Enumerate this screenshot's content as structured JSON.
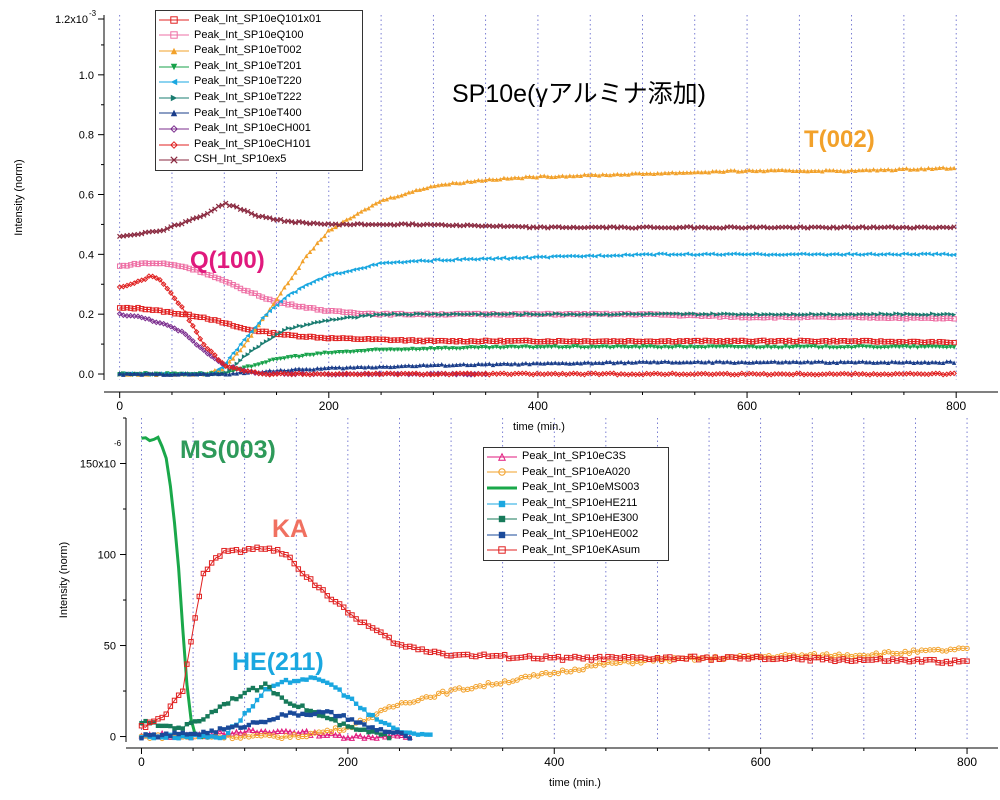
{
  "chart_data": [
    {
      "type": "line",
      "title": "SP10e(γアルミナ添加)",
      "xlabel": "time (min.)",
      "ylabel": "Intensity (norm)",
      "xlim": [
        -15,
        840
      ],
      "ylim": [
        -0.02,
        1.2
      ],
      "xticks": [
        0,
        200,
        400,
        600,
        800
      ],
      "yticks": [
        0.0,
        0.2,
        0.4,
        0.6,
        0.8,
        1.0
      ],
      "ytick_labels": [
        "0.0",
        "0.2",
        "0.4",
        "0.6",
        "0.8",
        "1.0"
      ],
      "y_top_label": "1.2x10",
      "y_top_exponent": "-3",
      "grid": "vertical dotted",
      "legend_position": "top-left",
      "annotations": [
        {
          "text": "T(002)",
          "color": "#f2a12a"
        },
        {
          "text": "Q(100)",
          "color": "#e0197d"
        }
      ],
      "series": [
        {
          "name": "Peak_Int_SP10eQ101x01",
          "color": "#e02020",
          "marker": "square-open",
          "x": [
            0,
            20,
            40,
            60,
            80,
            100,
            120,
            140,
            160,
            200,
            300,
            400,
            500,
            600,
            700,
            800
          ],
          "y": [
            0.22,
            0.22,
            0.21,
            0.2,
            0.19,
            0.17,
            0.15,
            0.14,
            0.13,
            0.12,
            0.11,
            0.11,
            0.11,
            0.11,
            0.11,
            0.105
          ]
        },
        {
          "name": "Peak_Int_SP10eQ100",
          "color": "#ee6fa4",
          "marker": "square-open",
          "x": [
            0,
            20,
            40,
            60,
            80,
            100,
            120,
            150,
            200,
            250,
            300,
            400,
            500,
            600,
            700,
            800
          ],
          "y": [
            0.36,
            0.37,
            0.37,
            0.36,
            0.34,
            0.31,
            0.28,
            0.24,
            0.21,
            0.2,
            0.2,
            0.2,
            0.2,
            0.19,
            0.19,
            0.185
          ]
        },
        {
          "name": "Peak_Int_SP10eT002",
          "color": "#f2a12a",
          "marker": "triangle-up",
          "x": [
            0,
            80,
            100,
            120,
            140,
            160,
            180,
            200,
            250,
            300,
            350,
            400,
            500,
            600,
            700,
            800
          ],
          "y": [
            0.0,
            0.0,
            0.02,
            0.1,
            0.2,
            0.3,
            0.4,
            0.48,
            0.58,
            0.63,
            0.65,
            0.66,
            0.67,
            0.68,
            0.68,
            0.69
          ]
        },
        {
          "name": "Peak_Int_SP10eT201",
          "color": "#17a24a",
          "marker": "triangle-down",
          "x": [
            0,
            100,
            120,
            140,
            160,
            200,
            250,
            300,
            400,
            500,
            600,
            700,
            800
          ],
          "y": [
            0.0,
            0.0,
            0.02,
            0.04,
            0.055,
            0.07,
            0.08,
            0.085,
            0.09,
            0.09,
            0.09,
            0.09,
            0.09
          ]
        },
        {
          "name": "Peak_Int_SP10eT220",
          "color": "#1aa7e0",
          "marker": "triangle-left",
          "x": [
            0,
            90,
            100,
            120,
            140,
            160,
            180,
            200,
            250,
            300,
            400,
            500,
            600,
            700,
            800
          ],
          "y": [
            0.0,
            0.0,
            0.03,
            0.12,
            0.2,
            0.26,
            0.3,
            0.33,
            0.37,
            0.38,
            0.39,
            0.4,
            0.4,
            0.4,
            0.4
          ]
        },
        {
          "name": "Peak_Int_SP10eT222",
          "color": "#1a7c70",
          "marker": "triangle-right",
          "x": [
            0,
            100,
            120,
            140,
            160,
            200,
            250,
            300,
            400,
            500,
            600,
            700,
            800
          ],
          "y": [
            0.0,
            0.0,
            0.06,
            0.11,
            0.15,
            0.18,
            0.2,
            0.2,
            0.2,
            0.2,
            0.2,
            0.2,
            0.2
          ]
        },
        {
          "name": "Peak_Int_SP10eT400",
          "color": "#1a3d8a",
          "marker": "triangle-up",
          "x": [
            0,
            100,
            140,
            200,
            300,
            400,
            500,
            600,
            700,
            800
          ],
          "y": [
            0.0,
            0.0,
            0.01,
            0.02,
            0.03,
            0.035,
            0.04,
            0.04,
            0.04,
            0.04
          ]
        },
        {
          "name": "Peak_Int_SP10eCH001",
          "color": "#7b2d8e",
          "marker": "diamond-open",
          "x": [
            0,
            20,
            40,
            60,
            80,
            100,
            120,
            140,
            200,
            300,
            350
          ],
          "y": [
            0.2,
            0.19,
            0.17,
            0.14,
            0.08,
            0.03,
            0.01,
            0.0,
            0.0,
            0.0,
            0.0
          ]
        },
        {
          "name": "Peak_Int_SP10eCH101",
          "color": "#e02020",
          "marker": "diamond-open",
          "x": [
            0,
            20,
            30,
            40,
            60,
            80,
            100,
            120,
            140,
            450,
            500,
            600,
            700,
            800
          ],
          "y": [
            0.29,
            0.31,
            0.33,
            0.31,
            0.22,
            0.1,
            0.03,
            0.01,
            0.0,
            0.0,
            0.0,
            0.0,
            0.0,
            0.0
          ]
        },
        {
          "name": "CSH_Int_SP10ex5",
          "color": "#8a2a40",
          "marker": "x",
          "x": [
            0,
            40,
            80,
            100,
            110,
            130,
            160,
            200,
            250,
            300,
            400,
            500,
            600,
            700,
            800
          ],
          "y": [
            0.46,
            0.48,
            0.53,
            0.57,
            0.56,
            0.53,
            0.51,
            0.5,
            0.5,
            0.5,
            0.49,
            0.49,
            0.49,
            0.49,
            0.49
          ]
        }
      ]
    },
    {
      "type": "line",
      "title": "",
      "xlabel": "time (min.)",
      "ylabel": "Intensity (norm)",
      "xlim": [
        -15,
        830
      ],
      "ylim": [
        -3,
        175
      ],
      "xticks": [
        0,
        200,
        400,
        600,
        800
      ],
      "yticks": [
        0,
        50,
        100,
        150
      ],
      "ytick_labels": [
        "0",
        "50",
        "100",
        "150x10"
      ],
      "y_top_exponent": "-6",
      "grid": "vertical dotted",
      "legend_position": "right-top",
      "annotations": [
        {
          "text": "MS(003)",
          "color": "#2e9a5a"
        },
        {
          "text": "KA",
          "color": "#f07060"
        },
        {
          "text": "HE(211)",
          "color": "#1aa7e0"
        }
      ],
      "series": [
        {
          "name": "Peak_Int_SP10eC3S",
          "color": "#e0197d",
          "marker": "triangle-open",
          "x": [
            0,
            20,
            40,
            60,
            80,
            100,
            120,
            140,
            160,
            200,
            260
          ],
          "y": [
            0,
            1,
            0,
            1,
            2,
            3,
            2,
            3,
            2,
            0,
            0
          ]
        },
        {
          "name": "Peak_Int_SP10eA020",
          "color": "#f2a12a",
          "marker": "circle-open",
          "x": [
            0,
            150,
            200,
            250,
            300,
            350,
            400,
            450,
            500,
            600,
            700,
            800
          ],
          "y": [
            0,
            0,
            5,
            18,
            25,
            30,
            35,
            40,
            42,
            44,
            45,
            48
          ]
        },
        {
          "name": "Peak_Int_SP10eMS003",
          "color": "#1aa84a",
          "marker": "none",
          "x": [
            0,
            10,
            15,
            20,
            25,
            30,
            35,
            40,
            45,
            50,
            55,
            60
          ],
          "y": [
            164,
            163,
            165,
            160,
            150,
            130,
            100,
            60,
            20,
            3,
            0,
            0
          ]
        },
        {
          "name": "Peak_Int_SP10eHE211",
          "color": "#1aa7e0",
          "marker": "square",
          "x": [
            0,
            80,
            100,
            120,
            140,
            160,
            180,
            200,
            220,
            250,
            280
          ],
          "y": [
            0,
            0,
            12,
            25,
            30,
            32,
            30,
            22,
            12,
            3,
            0
          ]
        },
        {
          "name": "Peak_Int_SP10eHE300",
          "color": "#177a5a",
          "marker": "square",
          "x": [
            0,
            20,
            40,
            60,
            80,
            100,
            120,
            140,
            160,
            180,
            200,
            240
          ],
          "y": [
            8,
            6,
            5,
            10,
            18,
            24,
            28,
            20,
            15,
            10,
            5,
            0
          ]
        },
        {
          "name": "Peak_Int_SP10eHE002",
          "color": "#1a4a9a",
          "marker": "square",
          "x": [
            0,
            60,
            100,
            140,
            180,
            200,
            220,
            260
          ],
          "y": [
            0,
            2,
            6,
            12,
            13,
            10,
            5,
            0
          ]
        },
        {
          "name": "Peak_Int_SP10eKAsum",
          "color": "#e02020",
          "marker": "square-open",
          "x": [
            0,
            20,
            40,
            50,
            60,
            80,
            100,
            120,
            140,
            160,
            180,
            200,
            250,
            300,
            350,
            400,
            500,
            600,
            700,
            800
          ],
          "y": [
            5,
            10,
            25,
            60,
            90,
            102,
            102,
            104,
            100,
            88,
            78,
            68,
            50,
            45,
            44,
            43,
            43,
            43,
            42,
            41
          ]
        }
      ]
    }
  ],
  "legends": {
    "top": [
      {
        "label": "Peak_Int_SP10eQ101x01",
        "color": "#e02020",
        "marker": "square-open"
      },
      {
        "label": "Peak_Int_SP10eQ100",
        "color": "#ee6fa4",
        "marker": "square-open"
      },
      {
        "label": "Peak_Int_SP10eT002",
        "color": "#f2a12a",
        "marker": "triangle-up"
      },
      {
        "label": "Peak_Int_SP10eT201",
        "color": "#17a24a",
        "marker": "triangle-down"
      },
      {
        "label": "Peak_Int_SP10eT220",
        "color": "#1aa7e0",
        "marker": "triangle-left"
      },
      {
        "label": "Peak_Int_SP10eT222",
        "color": "#1a7c70",
        "marker": "triangle-right"
      },
      {
        "label": "Peak_Int_SP10eT400",
        "color": "#1a3d8a",
        "marker": "triangle-up"
      },
      {
        "label": "Peak_Int_SP10eCH001",
        "color": "#7b2d8e",
        "marker": "diamond-open"
      },
      {
        "label": "Peak_Int_SP10eCH101",
        "color": "#e02020",
        "marker": "diamond-open"
      },
      {
        "label": "CSH_Int_SP10ex5",
        "color": "#8a2a40",
        "marker": "x"
      }
    ],
    "bottom": [
      {
        "label": "Peak_Int_SP10eC3S",
        "color": "#e0197d",
        "marker": "triangle-open"
      },
      {
        "label": "Peak_Int_SP10eA020",
        "color": "#f2a12a",
        "marker": "circle-open"
      },
      {
        "label": "Peak_Int_SP10eMS003",
        "color": "#1aa84a",
        "marker": "none"
      },
      {
        "label": "Peak_Int_SP10eHE211",
        "color": "#1aa7e0",
        "marker": "square"
      },
      {
        "label": "Peak_Int_SP10eHE300",
        "color": "#177a5a",
        "marker": "square"
      },
      {
        "label": "Peak_Int_SP10eHE002",
        "color": "#1a4a9a",
        "marker": "square"
      },
      {
        "label": "Peak_Int_SP10eKAsum",
        "color": "#e02020",
        "marker": "square-open"
      }
    ]
  }
}
